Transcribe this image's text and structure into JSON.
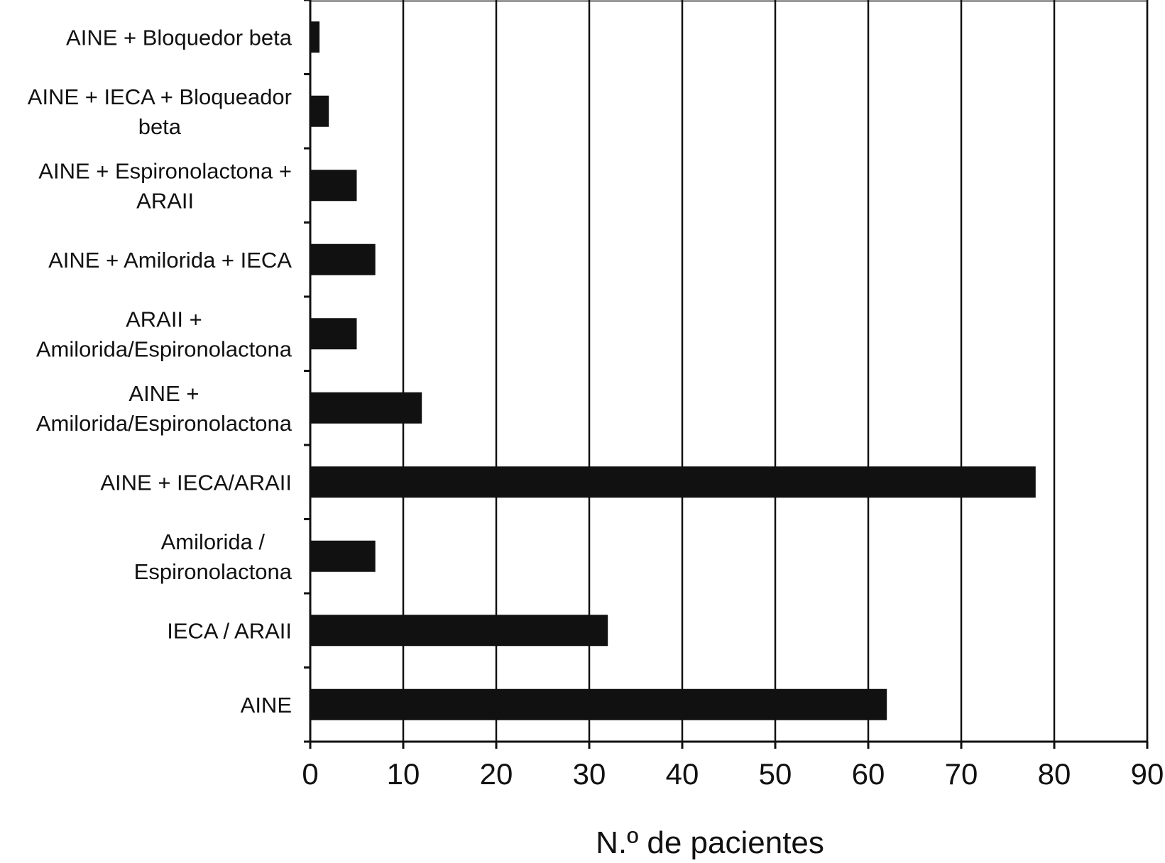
{
  "chart_data": {
    "type": "bar",
    "orientation": "horizontal",
    "categories": [
      [
        "AINE + Bloquedor beta"
      ],
      [
        "AINE + IECA + Bloqueador",
        "beta"
      ],
      [
        "AINE + Espironolactona +",
        "ARAII"
      ],
      [
        "AINE + Amilorida + IECA"
      ],
      [
        "ARAII +",
        "Amilorida/Espironolactona"
      ],
      [
        "AINE +",
        "Amilorida/Espironolactona"
      ],
      [
        "AINE + IECA/ARAII"
      ],
      [
        "Amilorida /",
        "Espironolactona"
      ],
      [
        "IECA / ARAII"
      ],
      [
        "AINE"
      ]
    ],
    "values": [
      1,
      2,
      5,
      7,
      5,
      12,
      78,
      7,
      32,
      62
    ],
    "xlabel": "N.º de pacientes",
    "ylabel": "",
    "xlim": [
      0,
      90
    ],
    "xticks": [
      "0",
      "10",
      "20",
      "30",
      "40",
      "50",
      "60",
      "70",
      "80",
      "90"
    ],
    "grid": "vertical",
    "legend": "none",
    "bar_color": "#111111",
    "grid_color": "#111111",
    "frame_color": "#999999"
  }
}
